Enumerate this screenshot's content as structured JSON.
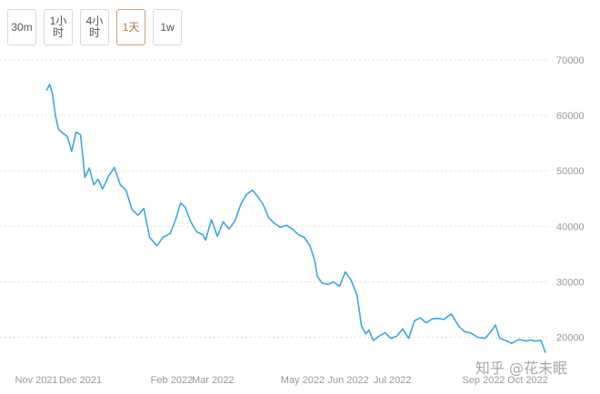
{
  "toolbar": {
    "buttons": [
      {
        "label": "30m",
        "active": false
      },
      {
        "label": "1小时",
        "active": false
      },
      {
        "label": "4小时",
        "active": false
      },
      {
        "label": "1天",
        "active": true
      },
      {
        "label": "1w",
        "active": false
      }
    ]
  },
  "watermark": "知乎 @花未眠",
  "chart_data": {
    "type": "line",
    "color": "#3ba9dc",
    "ylim": [
      15000,
      70000
    ],
    "y_ticks": [
      "70000",
      "60000",
      "50000",
      "40000",
      "30000",
      "20000"
    ],
    "x_ticks": [
      "Nov 2021",
      "Dec 2021",
      "Feb 2022",
      "Mar 2022",
      "May 2022",
      "Jun 2022",
      "Jul 2022",
      "Sep 2022",
      "Oct 2022"
    ],
    "x_tick_dates": [
      "2021-11-01",
      "2021-12-01",
      "2022-02-01",
      "2022-03-01",
      "2022-05-01",
      "2022-06-01",
      "2022-07-01",
      "2022-09-01",
      "2022-10-01"
    ],
    "xlim": [
      "2021-11-01",
      "2022-10-13"
    ],
    "series": [
      {
        "x": [
          "2021-11-08",
          "2021-11-10",
          "2021-11-12",
          "2021-11-14",
          "2021-11-16",
          "2021-11-19",
          "2021-11-22",
          "2021-11-25",
          "2021-11-28",
          "2021-12-01",
          "2021-12-04",
          "2021-12-07",
          "2021-12-10",
          "2021-12-13",
          "2021-12-16",
          "2021-12-20",
          "2021-12-24",
          "2021-12-28",
          "2022-01-01",
          "2022-01-05",
          "2022-01-09",
          "2022-01-13",
          "2022-01-17",
          "2022-01-22",
          "2022-01-26",
          "2022-01-31",
          "2022-02-04",
          "2022-02-07",
          "2022-02-10",
          "2022-02-14",
          "2022-02-18",
          "2022-02-22",
          "2022-02-24",
          "2022-02-28",
          "2022-03-04",
          "2022-03-08",
          "2022-03-12",
          "2022-03-16",
          "2022-03-20",
          "2022-03-24",
          "2022-03-28",
          "2022-03-31",
          "2022-04-04",
          "2022-04-08",
          "2022-04-12",
          "2022-04-16",
          "2022-04-20",
          "2022-04-24",
          "2022-04-28",
          "2022-05-02",
          "2022-05-06",
          "2022-05-09",
          "2022-05-11",
          "2022-05-14",
          "2022-05-18",
          "2022-05-22",
          "2022-05-26",
          "2022-05-30",
          "2022-06-03",
          "2022-06-07",
          "2022-06-10",
          "2022-06-13",
          "2022-06-15",
          "2022-06-18",
          "2022-06-22",
          "2022-06-26",
          "2022-06-30",
          "2022-07-04",
          "2022-07-08",
          "2022-07-12",
          "2022-07-16",
          "2022-07-20",
          "2022-07-24",
          "2022-07-28",
          "2022-08-01",
          "2022-08-05",
          "2022-08-10",
          "2022-08-15",
          "2022-08-19",
          "2022-08-23",
          "2022-08-28",
          "2022-09-02",
          "2022-09-06",
          "2022-09-09",
          "2022-09-12",
          "2022-09-15",
          "2022-09-20",
          "2022-09-25",
          "2022-09-30",
          "2022-10-03",
          "2022-10-06",
          "2022-10-10",
          "2022-10-13"
        ],
        "values": [
          64500,
          65600,
          63800,
          60000,
          57500,
          56800,
          56200,
          53500,
          57000,
          56500,
          48800,
          50500,
          47500,
          48500,
          46700,
          49000,
          50600,
          47500,
          46500,
          43000,
          42000,
          43200,
          38000,
          36500,
          38000,
          38700,
          41500,
          44200,
          43500,
          40800,
          39000,
          38500,
          37500,
          41200,
          38200,
          40800,
          39500,
          41000,
          44000,
          45800,
          46500,
          45500,
          44000,
          41500,
          40500,
          39800,
          40200,
          39500,
          38500,
          38000,
          36500,
          34000,
          31000,
          29800,
          29500,
          30000,
          29200,
          31800,
          30200,
          27500,
          22000,
          20600,
          21300,
          19400,
          20200,
          20800,
          19800,
          20200,
          21500,
          19800,
          23000,
          23500,
          22600,
          23300,
          23400,
          23200,
          24200,
          22000,
          21000,
          20800,
          20000,
          19800,
          21000,
          22200,
          19800,
          19500,
          18900,
          19600,
          19300,
          19500,
          19300,
          19400,
          17200
        ]
      }
    ]
  }
}
